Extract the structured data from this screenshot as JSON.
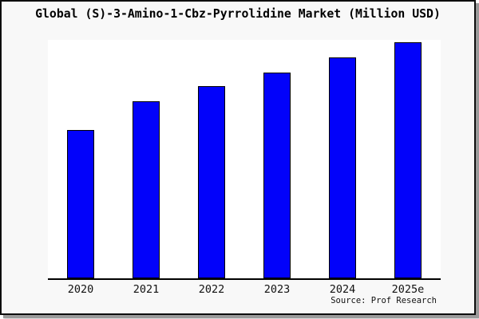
{
  "frame": {
    "background": "#f8f8f8",
    "border_color": "#0d0d0d",
    "shadow_color": "#9a9a9a"
  },
  "chart_data": {
    "type": "bar",
    "title": "Global (S)-3-Amino-1-Cbz-Pyrrolidine Market (Million USD)",
    "categories": [
      "2020",
      "2021",
      "2022",
      "2023",
      "2024",
      "2025e"
    ],
    "values": [
      62.7,
      75.0,
      81.3,
      87.3,
      93.7,
      100.0
    ],
    "ylim": [
      0,
      101
    ],
    "xlabel": "",
    "ylabel": "",
    "grid": false,
    "legend_position": "none",
    "y_axis_labels_visible": false,
    "bar_color": "#0202FA",
    "bar_border_color": "#000000",
    "plot_background": "#ffffff"
  },
  "footer": {
    "source": "Source: Prof Research"
  }
}
